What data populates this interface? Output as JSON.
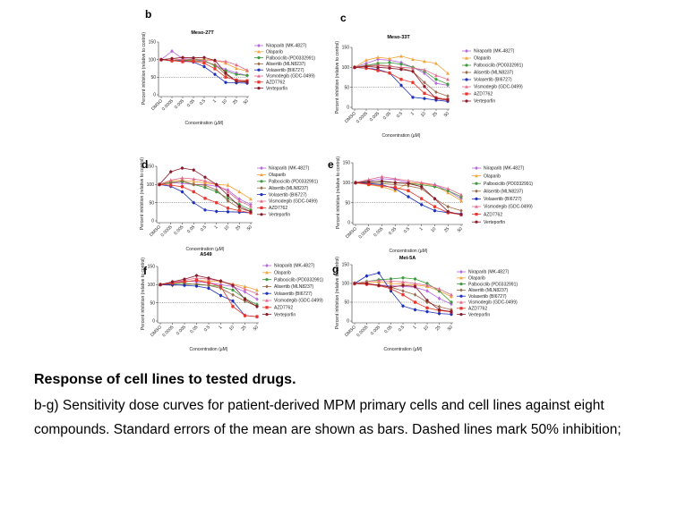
{
  "legend_names": [
    "Niraparib (MK-4827)",
    "Olaparib",
    "Palbociclib (PD0332991)",
    "Alisertib (MLN8237)",
    "Volasertib (BI6727)",
    "Vismodegib (GDC-0499)",
    "AZD7762",
    "Verteporfin"
  ],
  "series_colors": [
    "#b766e0",
    "#f2a33a",
    "#3d9a3d",
    "#9a6a46",
    "#1c2fb8",
    "#e06a8a",
    "#e8342a",
    "#8a1a2a"
  ],
  "chart_data": [
    {
      "type": "line",
      "panel_letter": "b",
      "title": "Meso-27T",
      "xlabel": "Concentration (µM)",
      "ylabel": "Percent inhibition (relative to control)",
      "categories": [
        "DMSO",
        "0.0005",
        "0.005",
        "0.05",
        "0.5",
        "1",
        "10",
        "25",
        "50"
      ],
      "ylim": [
        0,
        150
      ],
      "yticks": [
        0,
        50,
        100,
        150
      ],
      "reference_line": 50,
      "series": [
        {
          "name": "Niraparib (MK-4827)",
          "values": [
            100,
            124,
            103,
            100,
            95,
            85,
            72,
            62,
            55
          ]
        },
        {
          "name": "Olaparib",
          "values": [
            100,
            98,
            100,
            97,
            102,
            98,
            90,
            75,
            68
          ]
        },
        {
          "name": "Palbociclib (PD0332991)",
          "values": [
            100,
            96,
            98,
            100,
            98,
            82,
            68,
            58,
            55
          ]
        },
        {
          "name": "Alisertib (MLN8237)",
          "values": [
            100,
            98,
            97,
            96,
            95,
            85,
            58,
            40,
            38
          ]
        },
        {
          "name": "Volasertib (BI6727)",
          "values": [
            100,
            97,
            96,
            93,
            80,
            58,
            35,
            34,
            33
          ]
        },
        {
          "name": "Vismodegib (GDC-0499)",
          "values": [
            100,
            102,
            100,
            103,
            98,
            97,
            95,
            85,
            70
          ]
        },
        {
          "name": "AZD7762",
          "values": [
            100,
            97,
            94,
            95,
            90,
            74,
            50,
            42,
            40
          ]
        },
        {
          "name": "Verteporfin",
          "values": [
            100,
            103,
            106,
            105,
            106,
            98,
            62,
            38,
            36
          ]
        }
      ]
    },
    {
      "type": "line",
      "panel_letter": "c",
      "title": "Meso-33T",
      "xlabel": "Concentration (µM)",
      "ylabel": "Percent inhibition (relative to control)",
      "categories": [
        "DMSO",
        "0.0005",
        "0.005",
        "0.05",
        "0.5",
        "1",
        "10",
        "25",
        "50"
      ],
      "ylim": [
        0,
        150
      ],
      "yticks": [
        0,
        50,
        100,
        150
      ],
      "reference_line": 50,
      "series": [
        {
          "name": "Niraparib (MK-4827)",
          "values": [
            100,
            110,
            120,
            118,
            112,
            100,
            85,
            60,
            55
          ]
        },
        {
          "name": "Olaparib",
          "values": [
            100,
            118,
            125,
            122,
            128,
            120,
            115,
            110,
            85
          ]
        },
        {
          "name": "Palbociclib (PD0332991)",
          "values": [
            100,
            105,
            110,
            112,
            108,
            100,
            90,
            70,
            58
          ]
        },
        {
          "name": "Alisertib (MLN8237)",
          "values": [
            100,
            104,
            106,
            104,
            98,
            90,
            62,
            38,
            28
          ]
        },
        {
          "name": "Volasertib (BI6727)",
          "values": [
            100,
            98,
            95,
            86,
            55,
            25,
            22,
            18,
            15
          ]
        },
        {
          "name": "Vismodegib (GDC-0499)",
          "values": [
            100,
            103,
            104,
            102,
            100,
            98,
            94,
            80,
            70
          ]
        },
        {
          "name": "AZD7762",
          "values": [
            100,
            98,
            92,
            86,
            70,
            62,
            35,
            24,
            20
          ]
        },
        {
          "name": "Verteporfin",
          "values": [
            100,
            102,
            100,
            98,
            95,
            90,
            52,
            22,
            18
          ]
        }
      ]
    },
    {
      "type": "line",
      "panel_letter": "d",
      "title": "",
      "xlabel": "Concentration (µM)",
      "ylabel": "Percent inhibition (relative to control)",
      "categories": [
        "DMSO",
        "0.0005",
        "0.005",
        "0.05",
        "0.5",
        "1",
        "10",
        "25",
        "50"
      ],
      "ylim": [
        0,
        150
      ],
      "yticks": [
        0,
        50,
        100,
        150
      ],
      "reference_line": 50,
      "series": [
        {
          "name": "Niraparib (MK-4827)",
          "values": [
            100,
            105,
            103,
            100,
            100,
            95,
            85,
            60,
            45
          ]
        },
        {
          "name": "Olaparib",
          "values": [
            100,
            110,
            112,
            108,
            105,
            100,
            98,
            80,
            60
          ]
        },
        {
          "name": "Palbociclib (PD0332991)",
          "values": [
            100,
            106,
            108,
            100,
            92,
            80,
            62,
            45,
            30
          ]
        },
        {
          "name": "Alisertib (MLN8237)",
          "values": [
            100,
            104,
            110,
            100,
            98,
            85,
            55,
            35,
            25
          ]
        },
        {
          "name": "Volasertib (BI6727)",
          "values": [
            100,
            95,
            80,
            50,
            30,
            26,
            25,
            24,
            22
          ]
        },
        {
          "name": "Vismodegib (GDC-0499)",
          "values": [
            100,
            112,
            118,
            115,
            110,
            100,
            80,
            55,
            40
          ]
        },
        {
          "name": "AZD7762",
          "values": [
            100,
            98,
            94,
            80,
            62,
            50,
            35,
            28,
            22
          ]
        },
        {
          "name": "Verteporfin",
          "values": [
            100,
            135,
            145,
            140,
            120,
            100,
            70,
            40,
            25
          ]
        }
      ]
    },
    {
      "type": "line",
      "panel_letter": "e",
      "title": "",
      "xlabel": "Concentration (µM)",
      "ylabel": "Percent inhibition (relative to control)",
      "categories": [
        "DMSO",
        "0.0005",
        "0.005",
        "0.05",
        "0.5",
        "1",
        "10",
        "25",
        "50"
      ],
      "ylim": [
        0,
        150
      ],
      "yticks": [
        0,
        50,
        100,
        150
      ],
      "reference_line": 50,
      "series": [
        {
          "name": "Niraparib (MK-4827)",
          "values": [
            100,
            105,
            110,
            108,
            100,
            98,
            95,
            80,
            60
          ]
        },
        {
          "name": "Olaparib",
          "values": [
            100,
            95,
            90,
            80,
            100,
            98,
            92,
            75,
            55
          ]
        },
        {
          "name": "Palbociclib (PD0332991)",
          "values": [
            100,
            104,
            102,
            100,
            98,
            95,
            90,
            80,
            65
          ]
        },
        {
          "name": "Alisertib (MLN8237)",
          "values": [
            100,
            100,
            98,
            95,
            92,
            85,
            60,
            40,
            30
          ]
        },
        {
          "name": "Volasertib (BI6727)",
          "values": [
            100,
            98,
            95,
            85,
            65,
            45,
            30,
            25,
            22
          ]
        },
        {
          "name": "Vismodegib (GDC-0499)",
          "values": [
            100,
            108,
            115,
            110,
            105,
            100,
            95,
            85,
            70
          ]
        },
        {
          "name": "AZD7762",
          "values": [
            100,
            96,
            92,
            88,
            80,
            60,
            40,
            25,
            20
          ]
        },
        {
          "name": "Verteporfin",
          "values": [
            100,
            102,
            104,
            100,
            98,
            90,
            60,
            28,
            20
          ]
        }
      ]
    },
    {
      "type": "line",
      "panel_letter": "f",
      "title": "A549",
      "xlabel": "Concentration (µM)",
      "ylabel": "Percent inhibition (relative to control)",
      "categories": [
        "DMSO",
        "0.0005",
        "0.005",
        "0.05",
        "0.5",
        "1",
        "10",
        "25",
        "50"
      ],
      "ylim": [
        0,
        150
      ],
      "yticks": [
        0,
        50,
        100,
        150
      ],
      "reference_line": 50,
      "series": [
        {
          "name": "Niraparib (MK-4827)",
          "values": [
            100,
            105,
            110,
            108,
            105,
            100,
            95,
            80,
            60
          ]
        },
        {
          "name": "Olaparib",
          "values": [
            100,
            104,
            108,
            112,
            110,
            108,
            102,
            95,
            85
          ]
        },
        {
          "name": "Palbociclib (PD0332991)",
          "values": [
            100,
            102,
            104,
            100,
            98,
            95,
            85,
            62,
            45
          ]
        },
        {
          "name": "Alisertib (MLN8237)",
          "values": [
            100,
            98,
            100,
            102,
            98,
            90,
            72,
            55,
            40
          ]
        },
        {
          "name": "Volasertib (BI6727)",
          "values": [
            100,
            100,
            98,
            96,
            90,
            70,
            55,
            15,
            12
          ]
        },
        {
          "name": "Vismodegib (GDC-0499)",
          "values": [
            100,
            106,
            112,
            118,
            115,
            110,
            100,
            88,
            75
          ]
        },
        {
          "name": "AZD7762",
          "values": [
            100,
            104,
            108,
            112,
            105,
            95,
            40,
            15,
            12
          ]
        },
        {
          "name": "Verteporfin",
          "values": [
            100,
            108,
            115,
            125,
            118,
            110,
            98,
            60,
            40
          ]
        }
      ]
    },
    {
      "type": "line",
      "panel_letter": "g",
      "title": "Met-5A",
      "xlabel": "Concentration (µM)",
      "ylabel": "Percent inhibition (relative to control)",
      "categories": [
        "DMSO",
        "0.0005",
        "0.005",
        "0.05",
        "0.5",
        "1",
        "10",
        "25",
        "50"
      ],
      "ylim": [
        0,
        150
      ],
      "yticks": [
        0,
        50,
        100,
        150
      ],
      "reference_line": 50,
      "series": [
        {
          "name": "Niraparib (MK-4827)",
          "values": [
            100,
            98,
            96,
            94,
            92,
            90,
            80,
            60,
            45
          ]
        },
        {
          "name": "Olaparib",
          "values": [
            100,
            102,
            104,
            100,
            98,
            96,
            92,
            80,
            65
          ]
        },
        {
          "name": "Palbociclib (PD0332991)",
          "values": [
            100,
            105,
            110,
            112,
            115,
            112,
            100,
            80,
            50
          ]
        },
        {
          "name": "Alisertib (MLN8237)",
          "values": [
            100,
            98,
            96,
            90,
            80,
            70,
            50,
            38,
            30
          ]
        },
        {
          "name": "Volasertib (BI6727)",
          "values": [
            100,
            120,
            128,
            80,
            40,
            30,
            25,
            20,
            18
          ]
        },
        {
          "name": "Vismodegib (GDC-0499)",
          "values": [
            100,
            105,
            108,
            106,
            104,
            100,
            95,
            85,
            70
          ]
        },
        {
          "name": "AZD7762",
          "values": [
            100,
            98,
            94,
            86,
            70,
            50,
            35,
            28,
            24
          ]
        },
        {
          "name": "Verteporfin",
          "values": [
            100,
            100,
            95,
            90,
            95,
            92,
            55,
            30,
            25
          ]
        }
      ]
    }
  ],
  "caption": {
    "title": "Response of cell lines to tested drugs.",
    "body": "b-g) Sensitivity dose curves for patient-derived MPM primary cells and cell lines against eight compounds. Standard errors of the mean are shown as bars. Dashed lines mark 50% inhibition;"
  }
}
